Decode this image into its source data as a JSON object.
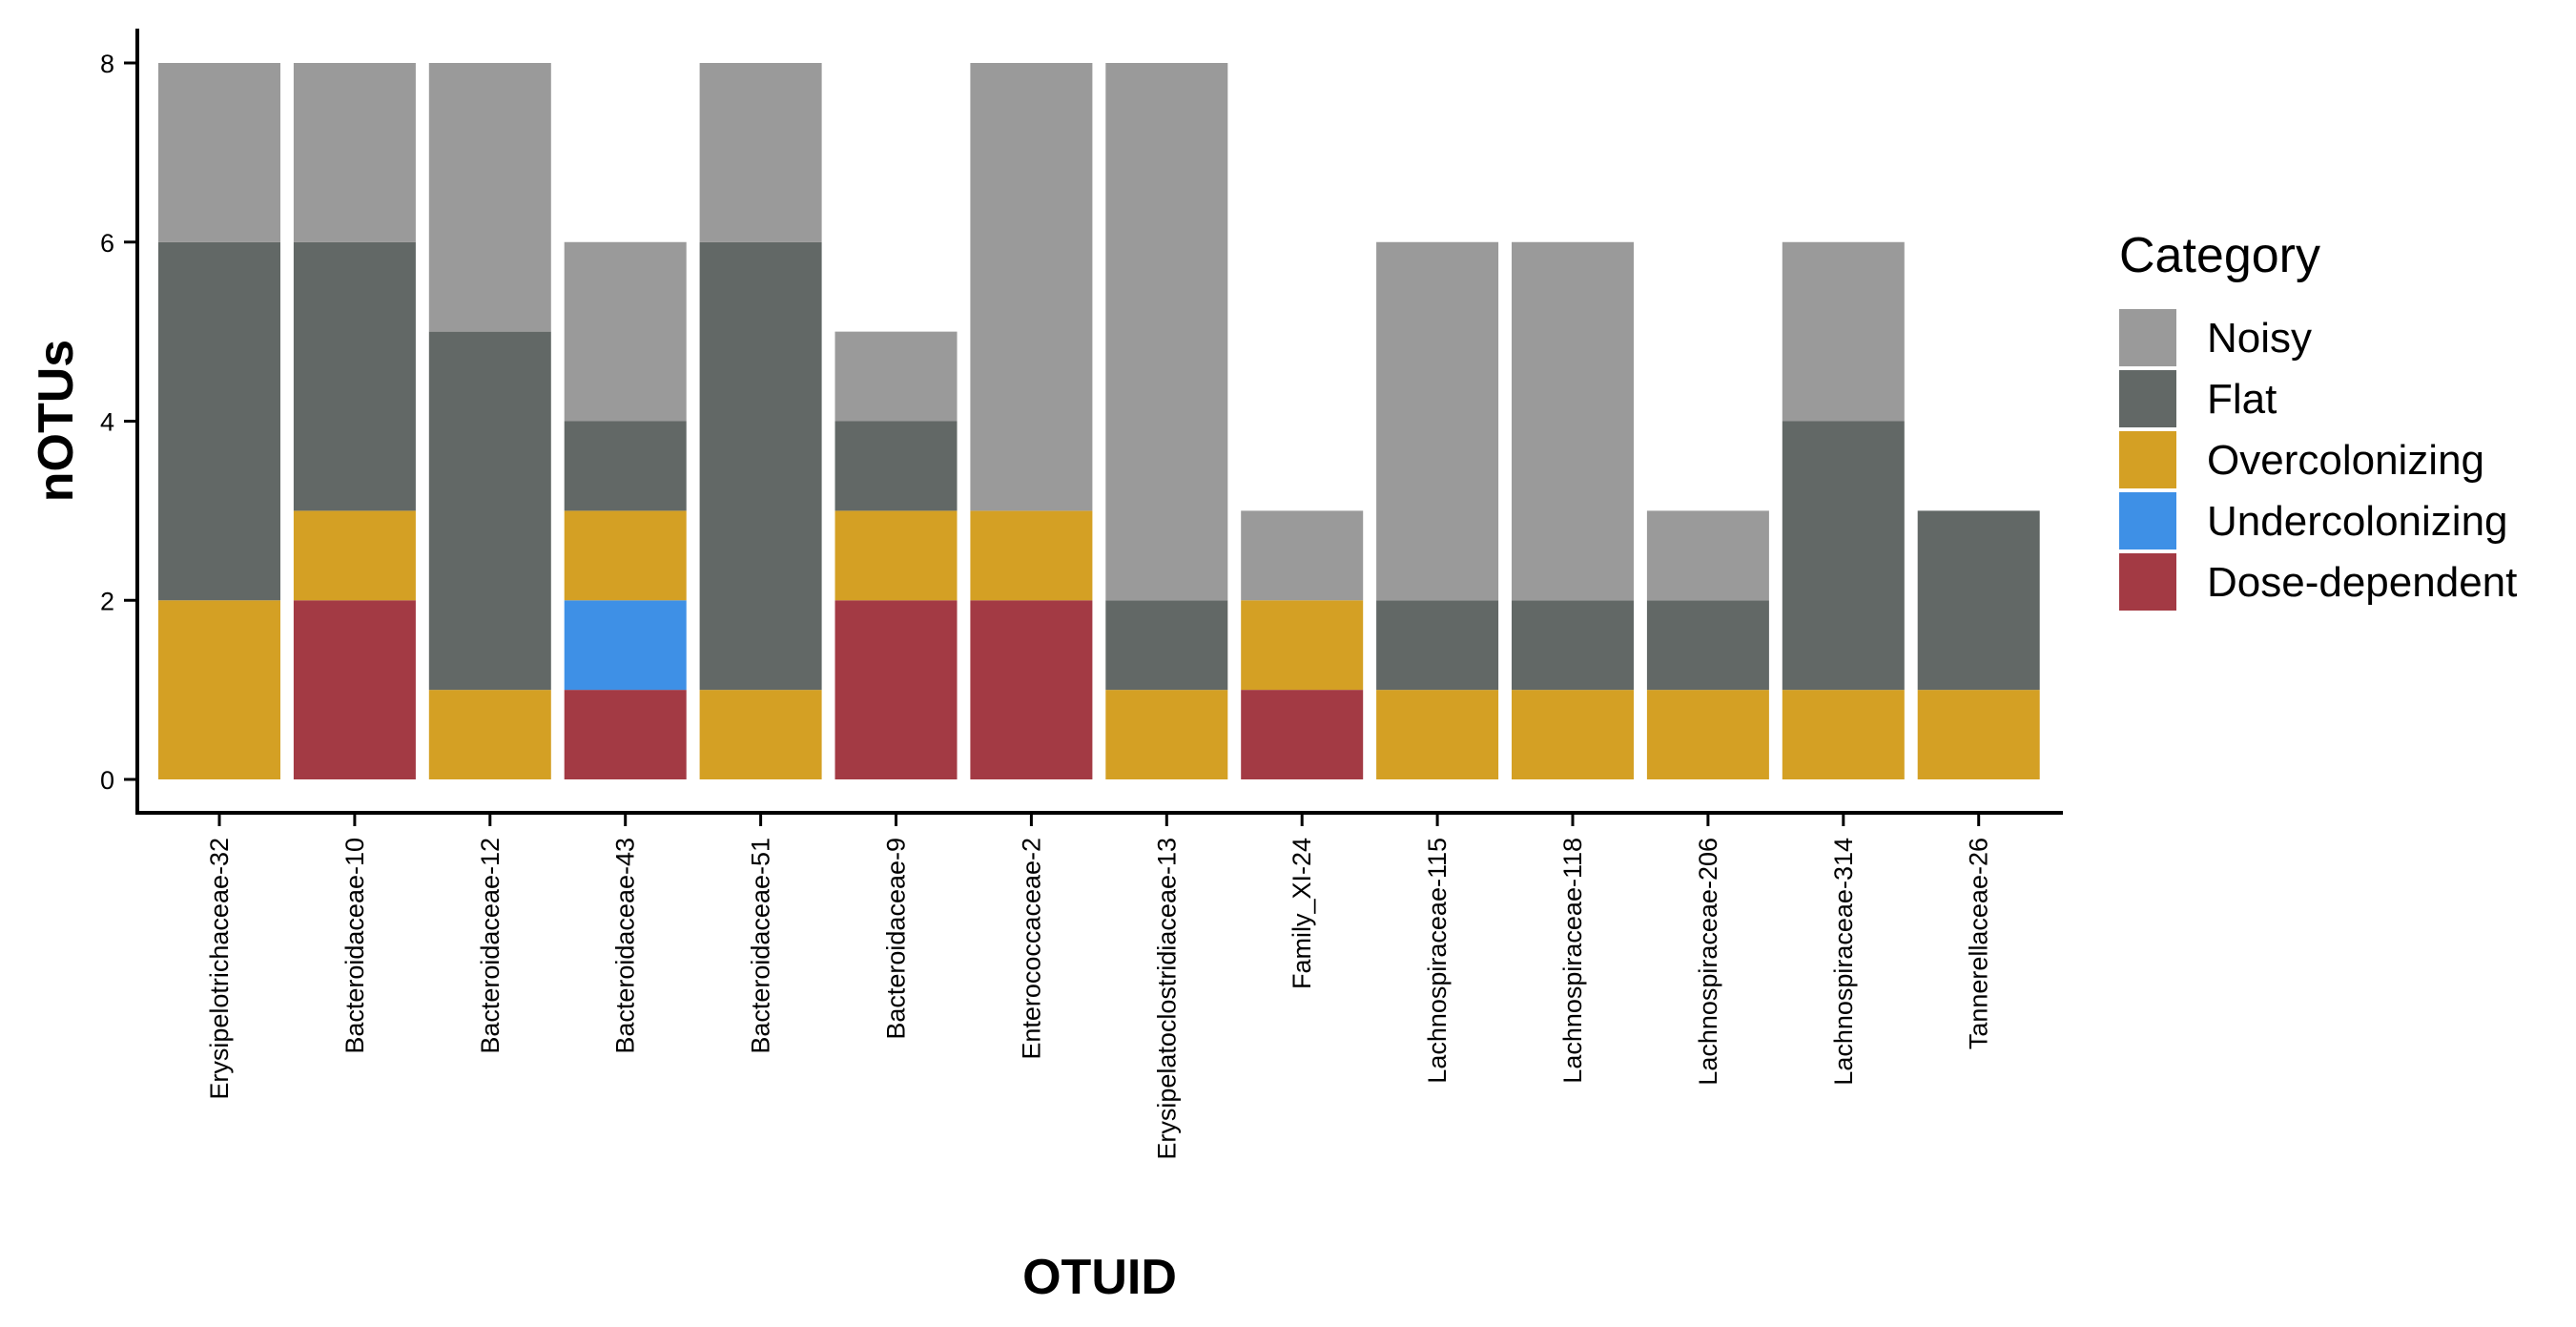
{
  "chart_data": {
    "type": "bar",
    "stacked": true,
    "xlabel": "OTUID",
    "ylabel": "nOTUs",
    "ylim": [
      0,
      8
    ],
    "yticks": [
      0,
      2,
      4,
      6,
      8
    ],
    "grid": false,
    "legend_position": "right",
    "legend_title": "Category",
    "categories": [
      "Erysipelotrichaceae-32",
      "Bacteroidaceae-10",
      "Bacteroidaceae-12",
      "Bacteroidaceae-43",
      "Bacteroidaceae-51",
      "Bacteroidaceae-9",
      "Enterococcaceae-2",
      "Erysipelatoclostridiaceae-13",
      "Family_XI-24",
      "Lachnospiraceae-115",
      "Lachnospiraceae-118",
      "Lachnospiraceae-206",
      "Lachnospiraceae-314",
      "Tannerellaceae-26"
    ],
    "series": [
      {
        "name": "Dose-dependent",
        "color": "#a33a44",
        "values": [
          0,
          2,
          0,
          1,
          0,
          2,
          2,
          0,
          1,
          0,
          0,
          0,
          0,
          0
        ]
      },
      {
        "name": "Undercolonizing",
        "color": "#3e90e6",
        "values": [
          0,
          0,
          0,
          1,
          0,
          0,
          0,
          0,
          0,
          0,
          0,
          0,
          0,
          0
        ]
      },
      {
        "name": "Overcolonizing",
        "color": "#d4a024",
        "values": [
          2,
          1,
          1,
          1,
          1,
          1,
          1,
          1,
          1,
          1,
          1,
          1,
          1,
          1
        ]
      },
      {
        "name": "Flat",
        "color": "#626866",
        "values": [
          4,
          3,
          4,
          1,
          5,
          1,
          0,
          1,
          0,
          1,
          1,
          1,
          3,
          2
        ]
      },
      {
        "name": "Noisy",
        "color": "#9a9a9a",
        "values": [
          2,
          2,
          3,
          2,
          2,
          1,
          5,
          6,
          1,
          4,
          4,
          1,
          2,
          0
        ]
      }
    ],
    "legend_order": [
      "Noisy",
      "Flat",
      "Overcolonizing",
      "Undercolonizing",
      "Dose-dependent"
    ]
  }
}
